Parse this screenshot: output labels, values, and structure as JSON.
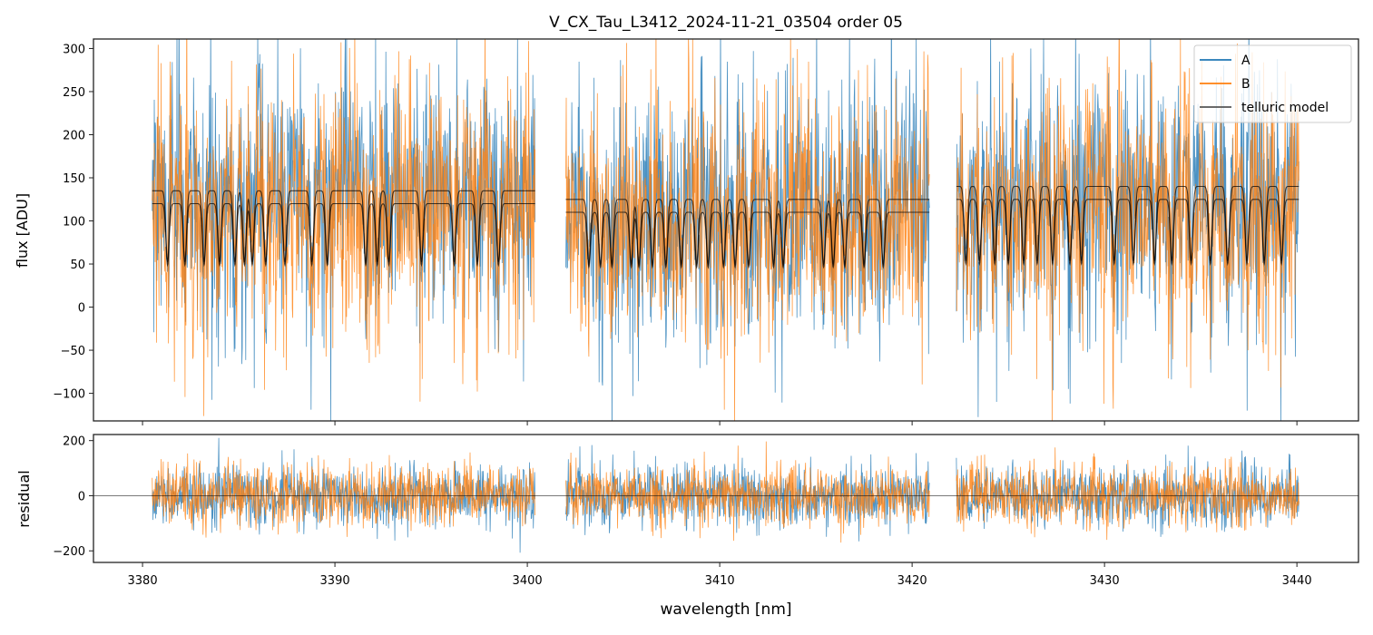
{
  "chart_data": [
    {
      "type": "line",
      "title": "V_CX_Tau_L3412_2024-11-21_03504  order 05",
      "xlabel": "",
      "ylabel": "flux [ADU]",
      "xlim": [
        3377.45,
        3443.2
      ],
      "ylim": [
        -132,
        311
      ],
      "yticks": [
        "−100",
        "−50",
        "0",
        "50",
        "100",
        "150",
        "200",
        "250",
        "300"
      ],
      "ytick_values": [
        -100,
        -50,
        0,
        50,
        100,
        150,
        200,
        250,
        300
      ],
      "legend": {
        "placement": "top-right",
        "entries": [
          "A",
          "B",
          "telluric model"
        ]
      },
      "segments": [
        [
          3380.5,
          3400.4
        ],
        [
          3402.0,
          3420.9
        ],
        [
          3422.3,
          3440.1
        ]
      ],
      "series": [
        {
          "name": "A",
          "color": "#1f77b4",
          "continuum": 130,
          "noise_sigma": 70
        },
        {
          "name": "B",
          "color": "#ff7f0e",
          "continuum": 115,
          "noise_sigma": 70
        },
        {
          "name": "telluric model",
          "color": "#000000",
          "continuum_A": [
            135,
            125,
            140
          ],
          "continuum_B": [
            120,
            110,
            125
          ],
          "floor": 25,
          "line_centers": [
            3381.3,
            3382.2,
            3383.2,
            3384.0,
            3384.8,
            3385.3,
            3385.7,
            3386.4,
            3387.4,
            3388.8,
            3389.6,
            3391.6,
            3392.2,
            3392.8,
            3394.5,
            3396.2,
            3397.4,
            3398.5,
            3403.2,
            3403.8,
            3404.4,
            3405.4,
            3405.8,
            3406.5,
            3407.2,
            3408.0,
            3408.8,
            3409.4,
            3410.2,
            3410.8,
            3411.5,
            3412.8,
            3413.3,
            3415.4,
            3415.9,
            3416.5,
            3417.5,
            3418.5,
            3422.8,
            3423.5,
            3424.3,
            3425.0,
            3425.8,
            3426.5,
            3427.3,
            3428.2,
            3428.8,
            3430.5,
            3431.5,
            3432.6,
            3433.5,
            3434.5,
            3435.5,
            3436.4,
            3437.4,
            3438.3,
            3439.2
          ]
        }
      ]
    },
    {
      "type": "line",
      "xlabel": "wavelength [nm]",
      "ylabel": "residual",
      "xlim": [
        3377.45,
        3443.2
      ],
      "ylim": [
        -242,
        222
      ],
      "xticks": [
        "3380",
        "3390",
        "3400",
        "3410",
        "3420",
        "3430",
        "3440"
      ],
      "xtick_values": [
        3380,
        3390,
        3400,
        3410,
        3420,
        3430,
        3440
      ],
      "yticks": [
        "−200",
        "0",
        "200"
      ],
      "ytick_values": [
        -200,
        0,
        200
      ],
      "series": [
        {
          "name": "A",
          "color": "#1f77b4",
          "noise_sigma": 55
        },
        {
          "name": "B",
          "color": "#ff7f0e",
          "noise_sigma": 55
        }
      ],
      "zero_line": 0
    }
  ]
}
